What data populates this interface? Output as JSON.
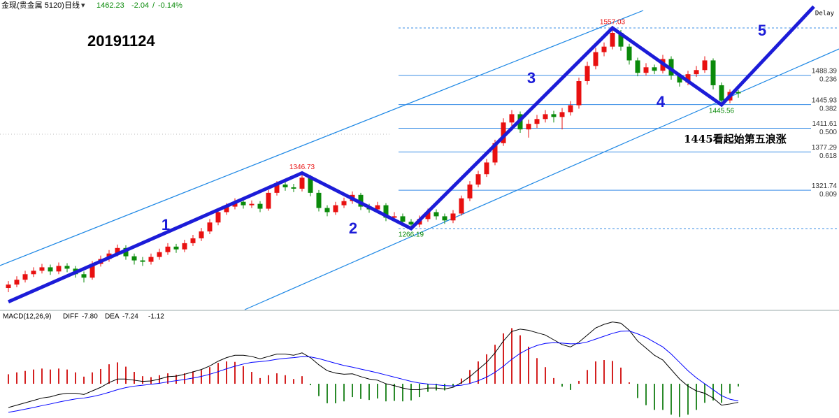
{
  "header": {
    "symbol": "金现(贵金属 5120)",
    "period": "日线",
    "change": -2.04,
    "change_percent": {
      "value": -0.14,
      "label": "-0.14%"
    },
    "delay": "Delay"
  },
  "chart_data": [
    {
      "type": "candlestick",
      "title": "20191124",
      "annotation": "1445看起始第五浪涨",
      "xlim": [
        -1,
        99
      ],
      "ylim": [
        1148.6,
        1597.6
      ],
      "up_color": "#e81010",
      "down_color": "#0a8a0a",
      "open": [
        1180,
        1185,
        1192,
        1200,
        1205,
        1210,
        1204,
        1212,
        1208,
        1200,
        1195,
        1215,
        1222,
        1230,
        1238,
        1226,
        1220,
        1218,
        1225,
        1232,
        1240,
        1236,
        1245,
        1252,
        1262,
        1275,
        1290,
        1298,
        1305,
        1300,
        1302,
        1295,
        1318,
        1330,
        1326,
        1324,
        1340,
        1318,
        1296,
        1290,
        1300,
        1306,
        1315,
        1298,
        1294,
        1300,
        1282,
        1284,
        1276,
        1272,
        1280,
        1290,
        1284,
        1278,
        1288,
        1310,
        1330,
        1345,
        1362,
        1390,
        1420,
        1432,
        1410,
        1418,
        1425,
        1432,
        1428,
        1435,
        1445,
        1480,
        1502,
        1522,
        1530,
        1550,
        1530,
        1510,
        1492,
        1500,
        1495,
        1512,
        1488,
        1478,
        1490,
        1496,
        1510,
        1474,
        1452,
        1464.27
      ],
      "high": [
        1190,
        1197,
        1205,
        1210,
        1215,
        1214,
        1217,
        1216,
        1212,
        1204,
        1219,
        1227,
        1235,
        1243,
        1242,
        1230,
        1225,
        1230,
        1237,
        1245,
        1244,
        1250,
        1257,
        1267,
        1280,
        1295,
        1303,
        1310,
        1309,
        1307,
        1306,
        1322,
        1335,
        1334,
        1331,
        1346.73,
        1344,
        1322,
        1300,
        1305,
        1311,
        1320,
        1318,
        1302,
        1305,
        1303,
        1290,
        1288,
        1280,
        1285,
        1295,
        1294,
        1288,
        1293,
        1314,
        1335,
        1350,
        1367,
        1395,
        1426,
        1438,
        1436,
        1424,
        1431,
        1438,
        1437,
        1441,
        1451,
        1485,
        1508,
        1528,
        1536,
        1557.03,
        1554,
        1534,
        1514,
        1506,
        1504,
        1518,
        1516,
        1492,
        1495,
        1502,
        1516,
        1513,
        1478,
        1468,
        1467
      ],
      "low": [
        1174,
        1181,
        1188,
        1196,
        1201,
        1199,
        1200,
        1203,
        1195,
        1188,
        1192,
        1211,
        1218,
        1226,
        1221,
        1214,
        1212,
        1214,
        1221,
        1228,
        1231,
        1232,
        1241,
        1248,
        1258,
        1271,
        1286,
        1294,
        1295,
        1296,
        1290,
        1292,
        1314,
        1321,
        1319,
        1320,
        1313,
        1291,
        1284,
        1286,
        1296,
        1302,
        1293,
        1289,
        1290,
        1277,
        1278,
        1271,
        1266.19,
        1268,
        1276,
        1279,
        1273,
        1274,
        1285,
        1306,
        1326,
        1341,
        1358,
        1386,
        1415,
        1405,
        1398,
        1412,
        1420,
        1420,
        1410,
        1430,
        1440,
        1475,
        1497,
        1516,
        1526,
        1524,
        1504,
        1487,
        1488,
        1490,
        1491,
        1482,
        1472,
        1474,
        1486,
        1492,
        1468,
        1445.56,
        1448,
        1456
      ],
      "close": [
        1185,
        1192,
        1200,
        1205,
        1210,
        1204,
        1212,
        1208,
        1200,
        1195,
        1215,
        1222,
        1230,
        1238,
        1226,
        1220,
        1218,
        1225,
        1232,
        1240,
        1236,
        1245,
        1252,
        1262,
        1275,
        1290,
        1298,
        1305,
        1300,
        1302,
        1295,
        1318,
        1330,
        1326,
        1324,
        1340,
        1318,
        1296,
        1290,
        1300,
        1306,
        1315,
        1298,
        1294,
        1300,
        1282,
        1284,
        1276,
        1272,
        1280,
        1290,
        1284,
        1278,
        1288,
        1310,
        1330,
        1345,
        1362,
        1390,
        1420,
        1432,
        1410,
        1418,
        1425,
        1432,
        1428,
        1435,
        1445,
        1480,
        1502,
        1522,
        1530,
        1550,
        1530,
        1510,
        1492,
        1500,
        1495,
        1512,
        1488,
        1478,
        1490,
        1496,
        1510,
        1474,
        1452,
        1464.27,
        1462.23
      ],
      "extremes": {
        "indices": [
          35,
          48,
          72,
          85
        ],
        "values": [
          1346.73,
          1266.19,
          1557.03,
          1445.56
        ],
        "high_color": "#e81010",
        "low_color": "#0a8a0a"
      },
      "fib_levels": {
        "color": "#3a8ee6",
        "values": [
          1488.39,
          1445.93,
          1411.61,
          1377.29,
          1321.74
        ],
        "ratios": [
          0.236,
          0.382,
          {
            "value": 0.5,
            "label": "0.500"
          },
          0.618,
          0.809
        ]
      },
      "wave": {
        "color": "#1c1cd8",
        "labels": [
          "1",
          "2",
          "3",
          "4",
          "5"
        ],
        "x": [
          0,
          35,
          48,
          72,
          85,
          96
        ],
        "y": [
          1160,
          1346.73,
          1266.19,
          1557.03,
          1445.56,
          1588
        ]
      },
      "channel": {
        "color": "#1e88e5",
        "lines": [
          {
            "x": [
              -1,
              75.67
            ],
            "y": [
              1212.5,
              1582.4
            ]
          },
          {
            "x": [
              28.17,
              99
            ],
            "y": [
              1148.6,
              1526.6
            ]
          }
        ]
      }
    },
    {
      "type": "macd",
      "title": "MACD(12,26,9)",
      "xlim": [
        -1,
        99
      ],
      "ylim": [
        -14.4,
        30.3
      ],
      "up_color": "#d42020",
      "down_color": "#2a8a2a",
      "series": [
        {
          "name": "DIFF",
          "color": "#000000",
          "values": [
            -10,
            -9,
            -8,
            -7,
            -6,
            -5.5,
            -4.5,
            -4,
            -4,
            -4.5,
            -3,
            -1.5,
            0.5,
            2,
            2,
            1.5,
            1,
            1.2,
            2,
            3,
            3.2,
            4,
            5,
            6,
            7.5,
            9.5,
            11,
            12,
            12,
            11.5,
            10.5,
            11.5,
            12.5,
            12.5,
            12,
            13,
            11,
            8,
            5.5,
            4.5,
            4,
            4.2,
            3,
            2,
            1.5,
            0,
            -0.8,
            -1.8,
            -2.5,
            -2.5,
            -1.8,
            -1.8,
            -2.2,
            -1.5,
            0.5,
            3,
            6,
            9,
            13,
            18,
            22,
            23,
            22.5,
            21.5,
            20.5,
            18.5,
            16.5,
            15.5,
            17.5,
            20.5,
            23.5,
            25,
            26,
            25.5,
            22.5,
            18,
            15,
            12,
            10,
            6,
            2,
            -1,
            -3,
            -4,
            -6,
            -9,
            -8.5,
            -7.8
          ],
          "value_labels": [
            null,
            null,
            null,
            null,
            null,
            null,
            null,
            null,
            null,
            null,
            null,
            null,
            null,
            null,
            null,
            null,
            null,
            null,
            null,
            null,
            null,
            null,
            null,
            null,
            null,
            null,
            null,
            null,
            null,
            null,
            null,
            null,
            null,
            null,
            null,
            null,
            null,
            null,
            null,
            null,
            null,
            null,
            null,
            null,
            null,
            null,
            null,
            null,
            null,
            null,
            null,
            null,
            null,
            null,
            null,
            null,
            null,
            null,
            null,
            null,
            null,
            null,
            null,
            null,
            null,
            null,
            null,
            null,
            null,
            null,
            null,
            null,
            null,
            null,
            null,
            null,
            null,
            null,
            null,
            null,
            null,
            null,
            null,
            null,
            null,
            null,
            null,
            "-7.80"
          ]
        },
        {
          "name": "DEA",
          "color": "#0000ff",
          "values": [
            -12,
            -11.4,
            -10.7,
            -10,
            -9.2,
            -8.5,
            -7.7,
            -7,
            -6.4,
            -6,
            -5.4,
            -4.6,
            -3.6,
            -2.5,
            -1.6,
            -1,
            -0.6,
            -0.2,
            0.2,
            0.8,
            1.3,
            1.8,
            2.4,
            3.1,
            4,
            5.1,
            6.3,
            7.4,
            8.3,
            9,
            9.3,
            9.7,
            10.3,
            10.7,
            11,
            11.4,
            11.3,
            10.6,
            9.6,
            8.6,
            7.7,
            7,
            6.2,
            5.4,
            4.6,
            3.7,
            2.8,
            1.9,
            1,
            0.3,
            -0.1,
            -0.4,
            -0.8,
            -0.9,
            -0.6,
            0.1,
            1.3,
            2.8,
            4.8,
            7.4,
            10.3,
            12.8,
            14.7,
            16.1,
            17,
            17.3,
            17.1,
            16.8,
            16.9,
            17.6,
            18.8,
            20,
            21.2,
            22.1,
            22.2,
            21,
            19.5,
            17.5,
            15.5,
            12.5,
            9,
            5.5,
            2.5,
            0,
            -2.5,
            -5,
            -6.5,
            -7.24
          ],
          "value_labels": [
            null,
            null,
            null,
            null,
            null,
            null,
            null,
            null,
            null,
            null,
            null,
            null,
            null,
            null,
            null,
            null,
            null,
            null,
            null,
            null,
            null,
            null,
            null,
            null,
            null,
            null,
            null,
            null,
            null,
            null,
            null,
            null,
            null,
            null,
            null,
            null,
            null,
            null,
            null,
            null,
            null,
            null,
            null,
            null,
            null,
            null,
            null,
            null,
            null,
            null,
            null,
            null,
            null,
            null,
            null,
            null,
            null,
            null,
            null,
            null,
            null,
            null,
            null,
            null,
            null,
            null,
            null,
            null,
            null,
            null,
            null,
            null,
            null,
            null,
            null,
            null,
            null,
            null,
            null,
            null,
            null,
            null,
            null,
            null,
            null,
            null,
            null,
            "-7.24"
          ]
        }
      ],
      "histogram": {
        "values": [
          4,
          4.8,
          5.4,
          6,
          6.4,
          6,
          6.4,
          6,
          4.8,
          3,
          4.8,
          6.2,
          8.2,
          9,
          7.2,
          5,
          3.2,
          2.8,
          3.6,
          4.4,
          3.8,
          4.4,
          5.2,
          5.8,
          7,
          8.8,
          9.4,
          9.2,
          7.4,
          5,
          2.4,
          3.6,
          4.4,
          3.6,
          2,
          3.2,
          -0.6,
          -5.2,
          -8.2,
          -8.2,
          -7.4,
          -5.6,
          -6.4,
          -6.8,
          -6.2,
          -7.4,
          -7.2,
          -7.4,
          -7,
          -5.6,
          -3.4,
          -2.8,
          -2.8,
          -1.2,
          2.2,
          5.8,
          9.4,
          12.4,
          16.4,
          21.2,
          23.4,
          20.4,
          15.6,
          10.8,
          7,
          2.4,
          -1.2,
          -2.6,
          1.2,
          5.8,
          9.4,
          10,
          9.6,
          6.8,
          0.6,
          -6,
          -9,
          -11,
          -11,
          -13,
          -14,
          -13,
          -11,
          -8,
          -7,
          -8,
          -4,
          -1.12
        ]
      }
    }
  ]
}
